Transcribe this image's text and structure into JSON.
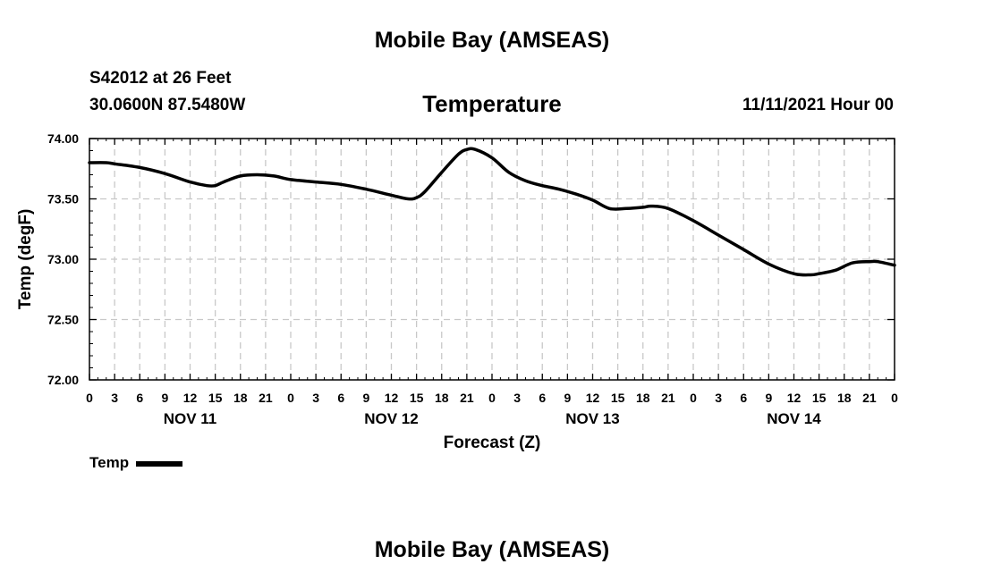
{
  "header": {
    "title": "Mobile Bay (AMSEAS)",
    "station": "S42012 at 26 Feet",
    "coords": "30.0600N  87.5480W",
    "chart_title": "Temperature",
    "date_label": "11/11/2021 Hour 00"
  },
  "footer": {
    "title": "Mobile Bay (AMSEAS)"
  },
  "legend": {
    "label": "Temp"
  },
  "colors": {
    "line": "#000000",
    "grid": "#c8c8c8"
  },
  "chart_data": {
    "type": "line",
    "title": "Temperature",
    "xlabel": "Forecast (Z)",
    "ylabel": "Temp (degF)",
    "xlim": [
      0,
      96
    ],
    "ylim": [
      72.0,
      74.0
    ],
    "grid": true,
    "legend_position": "bottom-left",
    "x_tick_labels": [
      "0",
      "3",
      "6",
      "9",
      "12",
      "15",
      "18",
      "21",
      "0",
      "3",
      "6",
      "9",
      "12",
      "15",
      "18",
      "21",
      "0",
      "3",
      "6",
      "9",
      "12",
      "15",
      "18",
      "21",
      "0",
      "3",
      "6",
      "9",
      "12",
      "15",
      "18",
      "21",
      "0"
    ],
    "y_tick_labels": [
      "74.00",
      "73.50",
      "73.00",
      "72.50",
      "72.00"
    ],
    "y_ticks": [
      74.0,
      73.5,
      73.0,
      72.5,
      72.0
    ],
    "day_labels": [
      {
        "label": "NOV 11",
        "x": 12
      },
      {
        "label": "NOV 12",
        "x": 36
      },
      {
        "label": "NOV 13",
        "x": 60
      },
      {
        "label": "NOV 14",
        "x": 84
      }
    ],
    "series": [
      {
        "name": "Temp",
        "x": [
          0,
          2,
          3,
          6,
          9,
          12,
          14,
          15,
          16,
          18,
          20,
          22,
          24,
          27,
          30,
          33,
          36,
          38,
          39,
          40,
          42,
          44,
          45,
          46,
          48,
          50,
          52,
          54,
          56,
          58,
          60,
          62,
          64,
          66,
          67,
          69,
          72,
          75,
          78,
          81,
          84,
          86,
          87,
          89,
          91,
          93,
          94,
          96
        ],
        "y": [
          73.8,
          73.8,
          73.79,
          73.76,
          73.71,
          73.64,
          73.61,
          73.61,
          73.64,
          73.69,
          73.7,
          73.69,
          73.66,
          73.64,
          73.62,
          73.58,
          73.53,
          73.5,
          73.51,
          73.56,
          73.72,
          73.87,
          73.91,
          73.91,
          73.84,
          73.72,
          73.65,
          73.61,
          73.58,
          73.54,
          73.49,
          73.42,
          73.42,
          73.43,
          73.44,
          73.42,
          73.32,
          73.2,
          73.08,
          72.96,
          72.88,
          72.87,
          72.88,
          72.91,
          72.97,
          72.98,
          72.98,
          72.95
        ]
      }
    ]
  }
}
